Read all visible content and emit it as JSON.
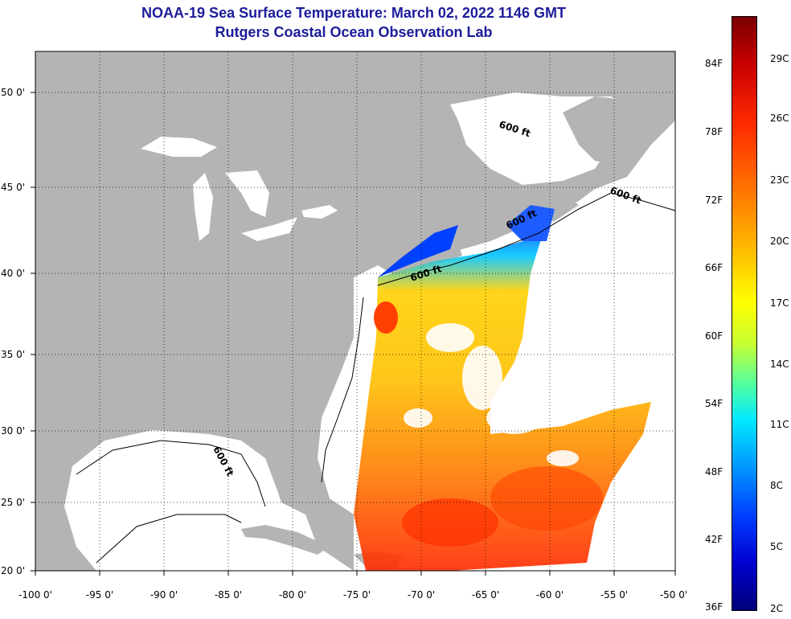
{
  "header": {
    "title": "NOAA-19 Sea Surface Temperature:  March 02, 2022 1146 GMT",
    "subtitle": "Rutgers Coastal Ocean Observation Lab"
  },
  "map": {
    "lat_labels": [
      "50 0'",
      "45 0'",
      "40 0'",
      "35 0'",
      "30 0'",
      "25 0'",
      "20 0'"
    ],
    "lon_labels": [
      "-100 0'",
      "-95 0'",
      "-90 0'",
      "-85 0'",
      "-80 0'",
      "-75 0'",
      "-70 0'",
      "-65 0'",
      "-60 0'",
      "-55 0'",
      "-50 0'"
    ],
    "contour_labels": [
      "600 ft",
      "600 ft",
      "600 ft",
      "600 ft",
      "600 ft"
    ],
    "colors": {
      "land": "#b4b4b4",
      "ocean_no_data": "#ffffff",
      "title": "#1c1c9c"
    }
  },
  "colorbar": {
    "fahrenheit": [
      "84F",
      "78F",
      "72F",
      "66F",
      "60F",
      "54F",
      "48F",
      "42F",
      "36F"
    ],
    "celsius": [
      "29C",
      "26C",
      "23C",
      "20C",
      "17C",
      "14C",
      "11C",
      "8C",
      "5C",
      "2C"
    ]
  }
}
